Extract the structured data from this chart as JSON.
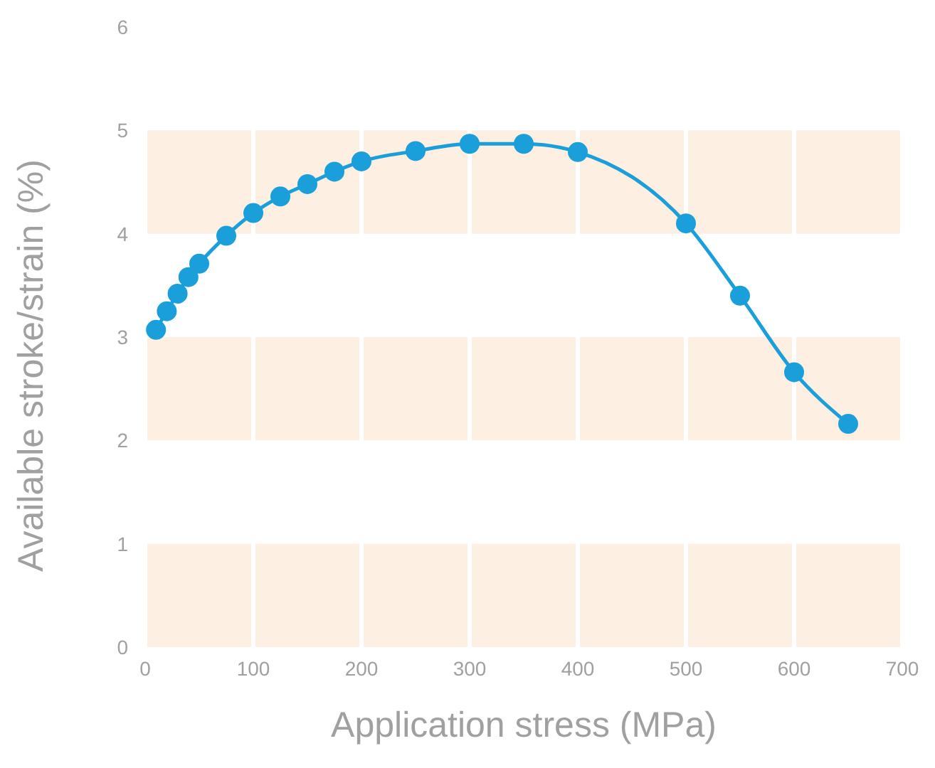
{
  "chart_data": {
    "type": "line",
    "xlabel": "Application stress (MPa)",
    "ylabel": "Available stroke/strain (%)",
    "x": [
      10,
      20,
      30,
      40,
      50,
      75,
      100,
      125,
      150,
      175,
      200,
      250,
      300,
      350,
      400,
      500,
      550,
      600,
      650
    ],
    "series": [
      {
        "color": "#1a9fdb",
        "values": [
          3.07,
          3.25,
          3.42,
          3.58,
          3.71,
          3.98,
          4.2,
          4.36,
          4.48,
          4.6,
          4.7,
          4.8,
          4.87,
          4.87,
          4.79,
          4.1,
          3.4,
          2.66,
          2.16
        ]
      }
    ],
    "xlim": [
      0,
      700
    ],
    "xticks": [
      0,
      100,
      200,
      300,
      400,
      500,
      600,
      700
    ],
    "ylim": [
      0,
      6
    ],
    "yticks": [
      0,
      1,
      2,
      3,
      4,
      5,
      6
    ],
    "bands": [
      {
        "axis": "y",
        "from": 0,
        "to": 1,
        "color": "#fdefe1"
      },
      {
        "axis": "y",
        "from": 2,
        "to": 3,
        "color": "#fdefe1"
      },
      {
        "axis": "y",
        "from": 4,
        "to": 5,
        "color": "#fdefe1"
      }
    ],
    "grid": "x",
    "marker": "circle",
    "line_style": "solid"
  }
}
